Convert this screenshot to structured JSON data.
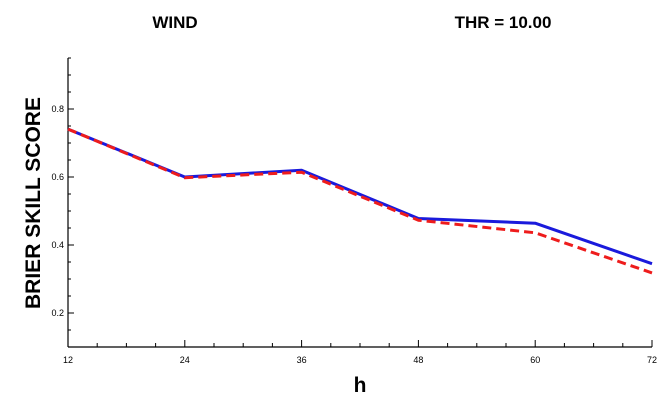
{
  "header": {
    "left_title": "WIND",
    "right_title": "THR =  10.00"
  },
  "chart_data": {
    "type": "line",
    "title": "WIND",
    "subtitle": "THR =  10.00",
    "xlabel": "h",
    "ylabel": "BRIER SKILL SCORE",
    "x": [
      12,
      24,
      36,
      48,
      60,
      72
    ],
    "xlim": [
      12,
      72
    ],
    "ylim": [
      0.1,
      0.95
    ],
    "x_ticks": [
      "12",
      "24",
      "36",
      "48",
      "60",
      "72"
    ],
    "y_ticks": [
      "0.2",
      "0.4",
      "0.6",
      "0.8"
    ],
    "x_tick_values": [
      12,
      24,
      36,
      48,
      60,
      72
    ],
    "y_tick_values": [
      0.2,
      0.4,
      0.6,
      0.8
    ],
    "grid": false,
    "legend": "none",
    "series": [
      {
        "values": [
          0.741,
          0.6,
          0.62,
          0.478,
          0.464,
          0.345
        ],
        "color": "#1a1adc",
        "style": "solid"
      },
      {
        "values": [
          0.741,
          0.598,
          0.614,
          0.473,
          0.436,
          0.318
        ],
        "color": "#ee1c1c",
        "style": "dashed"
      }
    ]
  }
}
